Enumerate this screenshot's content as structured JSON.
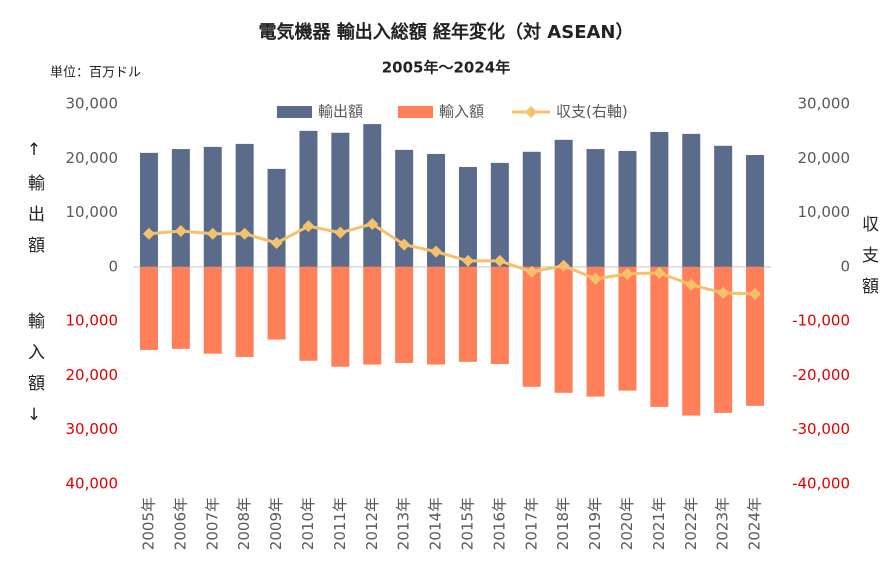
{
  "chart_data": {
    "type": "bar-line",
    "title": "電気機器 輸出入総額 経年変化（対 ASEAN）",
    "subtitle": "2005年～2024年",
    "unit_label": "単位：百万ドル",
    "y_label_top": "↑輸出額",
    "y_label_bottom": "輸入額↓",
    "y2_label": "収支額",
    "categories": [
      "2005年",
      "2006年",
      "2007年",
      "2008年",
      "2009年",
      "2010年",
      "2011年",
      "2012年",
      "2013年",
      "2014年",
      "2015年",
      "2016年",
      "2017年",
      "2018年",
      "2019年",
      "2020年",
      "2021年",
      "2022年",
      "2023年",
      "2024年"
    ],
    "series": [
      {
        "name": "輸出額",
        "type": "bar",
        "color": "#5b6b8c",
        "values": [
          21000,
          21700,
          22100,
          22650,
          18050,
          25050,
          24700,
          26300,
          21550,
          20800,
          18400,
          19150,
          21200,
          23400,
          21700,
          21350,
          24850,
          24500,
          22300,
          20600
        ]
      },
      {
        "name": "輸入額",
        "type": "bar",
        "color": "#ff7f59",
        "values": [
          -15300,
          -15100,
          -16000,
          -16600,
          -13400,
          -17300,
          -18400,
          -18000,
          -17700,
          -18000,
          -17500,
          -17900,
          -22100,
          -23200,
          -23900,
          -22800,
          -25800,
          -27400,
          -26900,
          -25600
        ]
      },
      {
        "name": "収支(右軸)",
        "type": "line",
        "axis": "y2",
        "color": "#f5c26b",
        "values": [
          6100,
          6600,
          6100,
          6100,
          4400,
          7500,
          6300,
          7900,
          4100,
          2800,
          1100,
          1100,
          -900,
          200,
          -2200,
          -1300,
          -1100,
          -3300,
          -4800,
          -5000
        ]
      }
    ],
    "ylim": [
      -40000,
      30000
    ],
    "yticks": [
      {
        "value": -40000,
        "label": "40,000"
      },
      {
        "value": -30000,
        "label": "30,000"
      },
      {
        "value": -20000,
        "label": "20,000"
      },
      {
        "value": -10000,
        "label": "10,000"
      },
      0,
      {
        "value": 10000,
        "label": "10,000"
      },
      {
        "value": 20000,
        "label": "20,000"
      },
      {
        "value": 30000,
        "label": "30,000"
      }
    ],
    "y2lim": [
      -40000,
      30000
    ],
    "y2ticks": [
      {
        "value": -40000,
        "label": "-40,000"
      },
      {
        "value": -30000,
        "label": "-30,000"
      },
      {
        "value": -20000,
        "label": "-20,000"
      },
      {
        "value": -10000,
        "label": "-10,000"
      },
      0,
      {
        "value": 10000,
        "label": "10,000"
      },
      {
        "value": 20000,
        "label": "20,000"
      },
      {
        "value": 30000,
        "label": "30,000"
      }
    ],
    "tick_color": "#595959",
    "negative_tick_color": "#e00000",
    "zero_line": true,
    "legend": "top"
  }
}
